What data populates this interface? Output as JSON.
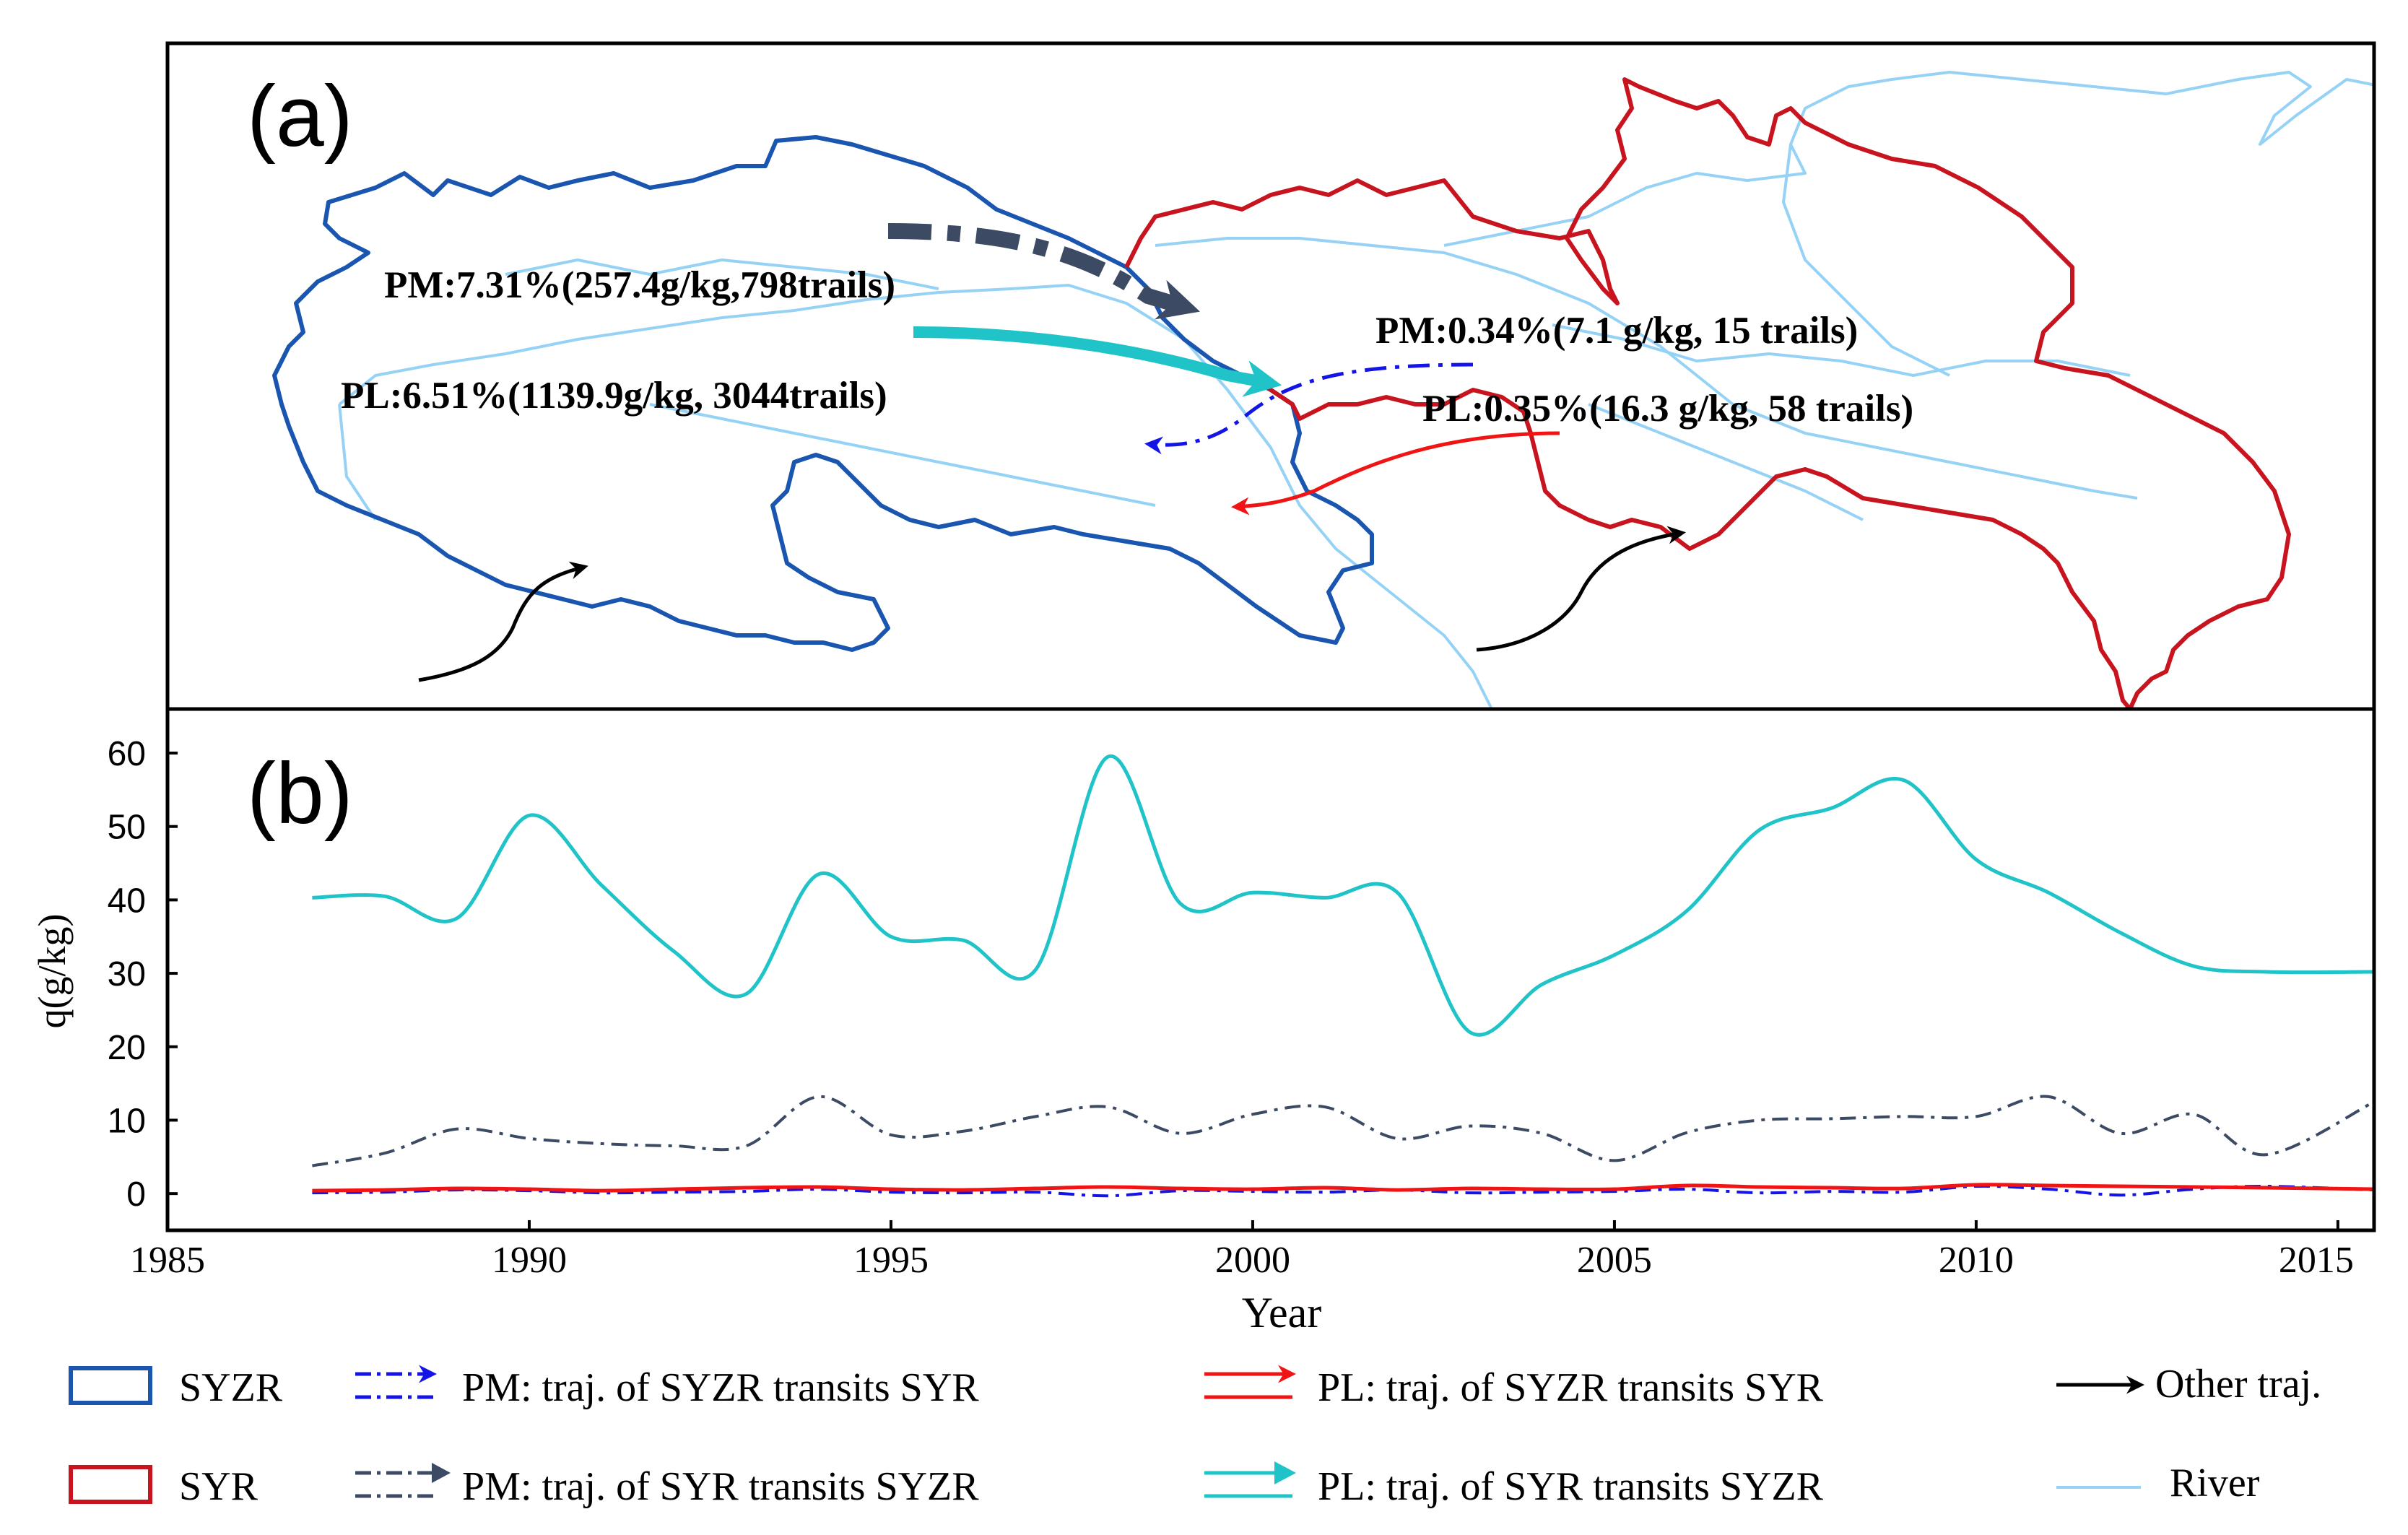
{
  "panel_a": {
    "label": "(a)",
    "annotations": {
      "syr_pm": "PM:7.31%(257.4g/kg,798trails)",
      "syr_pl": "PL:6.51%(1139.9g/kg, 3044trails)",
      "syzr_pm": "PM:0.34%(7.1 g/kg, 15 trails)",
      "syzr_pl": "PL:0.35%(16.3 g/kg, 58 trails)"
    }
  },
  "legend": {
    "syzr": "SYZR",
    "syr": "SYR",
    "pm_syzr": "PM: traj. of  SYZR  transits SYR",
    "pm_syr": "PM: traj. of  SYR  transits SYZR",
    "pl_syzr": "PL: traj. of  SYZR  transits SYR",
    "pl_syr": "PL: traj. of  SYR  transits SYZR",
    "other": "Other traj.",
    "river": "River"
  },
  "colors": {
    "syzr_outline": "#1a56b0",
    "syr_outline": "#c8141e",
    "pm_syzr": "#1414e6",
    "pm_syr": "#3c4a64",
    "pl_syzr": "#f01414",
    "pl_syr": "#20c4c8",
    "river": "#96d2f5",
    "other": "#000000"
  },
  "chart_data": {
    "type": "line",
    "panel_label": "(b)",
    "xlabel": "Year",
    "ylabel": "q(g/kg)",
    "xlim": [
      1985,
      2015.5
    ],
    "ylim": [
      -5,
      66
    ],
    "xticks": [
      1985,
      1990,
      1995,
      2000,
      2005,
      2010,
      2015
    ],
    "yticks": [
      0,
      10,
      20,
      30,
      40,
      50,
      60
    ],
    "x": [
      1987,
      1988,
      1989,
      1990,
      1991,
      1992,
      1993,
      1994,
      1995,
      1996,
      1997,
      1998,
      1999,
      2000,
      2001,
      2002,
      2003,
      2004,
      2005,
      2006,
      2007,
      2008,
      2009,
      2010,
      2011,
      2012,
      2013,
      2014,
      2015.5
    ],
    "series": [
      {
        "name": "PL: traj. of  SYR  transits SYZR",
        "values": [
          40.3,
          40.5,
          37.5,
          51.5,
          42,
          33,
          27.2,
          43.5,
          35,
          34.5,
          30.5,
          59.5,
          39.5,
          41,
          40.3,
          41,
          22,
          28.5,
          32.5,
          38.5,
          49.5,
          52.5,
          56.3,
          45.5,
          41,
          35.5,
          31,
          30.2,
          30.2
        ]
      },
      {
        "name": "PM: traj. of  SYR  transits SYZR",
        "values": [
          3.8,
          5.5,
          8.8,
          7.5,
          6.8,
          6.5,
          6.5,
          13.2,
          8,
          8.5,
          10.5,
          11.8,
          8.2,
          10.8,
          11.8,
          7.5,
          9.2,
          8.2,
          4.5,
          8.3,
          10,
          10.2,
          10.5,
          10.5,
          13.2,
          8.2,
          10.8,
          5.3,
          12.5
        ]
      },
      {
        "name": "PL: traj. of  SYZR  transits SYR",
        "values": [
          0.4,
          0.5,
          0.7,
          0.6,
          0.4,
          0.6,
          0.8,
          0.9,
          0.6,
          0.5,
          0.7,
          0.9,
          0.7,
          0.6,
          0.8,
          0.5,
          0.7,
          0.6,
          0.6,
          1.1,
          0.9,
          0.8,
          0.7,
          1.2,
          1.1,
          1.0,
          0.9,
          0.8,
          0.6
        ]
      },
      {
        "name": "PM: traj. of  SYZR  transits SYR",
        "values": [
          0.1,
          0.2,
          0.5,
          0.4,
          0.1,
          0.2,
          0.3,
          0.6,
          0.2,
          0.1,
          0.2,
          -0.3,
          0.4,
          0.3,
          0.2,
          0.5,
          0.1,
          0.2,
          0.3,
          0.6,
          0.1,
          0.3,
          0.2,
          1.0,
          0.6,
          -0.2,
          0.6,
          1.0,
          0.5
        ]
      }
    ]
  }
}
